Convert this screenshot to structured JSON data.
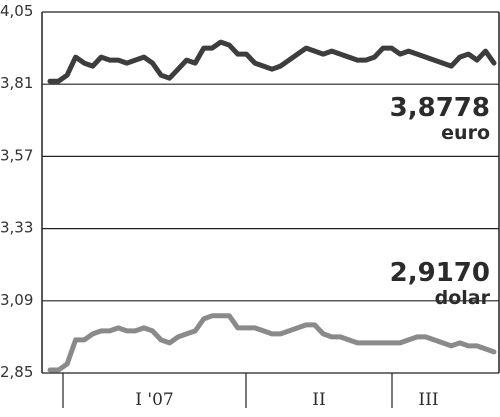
{
  "chart_data": {
    "type": "line",
    "title": "",
    "xlabel": "",
    "ylabel": "",
    "ylim": [
      2.85,
      4.05
    ],
    "y_ticks": [
      "4,05",
      "3,81",
      "3,57",
      "3,33",
      "3,09",
      "2,85"
    ],
    "x_ticks": [
      "I '07",
      "II",
      "III"
    ],
    "grid": true,
    "colors": {
      "euro": "#3d3d3d",
      "dolar": "#8a8a8a",
      "frame": "#222222",
      "grid": "#222222"
    },
    "series": [
      {
        "name": "euro",
        "latest_label": "3,8778",
        "values": [
          3.82,
          3.82,
          3.84,
          3.9,
          3.88,
          3.87,
          3.9,
          3.89,
          3.89,
          3.88,
          3.89,
          3.9,
          3.88,
          3.84,
          3.83,
          3.86,
          3.89,
          3.88,
          3.93,
          3.93,
          3.95,
          3.94,
          3.91,
          3.91,
          3.88,
          3.87,
          3.86,
          3.87,
          3.89,
          3.91,
          3.93,
          3.92,
          3.91,
          3.92,
          3.91,
          3.9,
          3.89,
          3.89,
          3.9,
          3.93,
          3.93,
          3.91,
          3.92,
          3.91,
          3.9,
          3.89,
          3.88,
          3.87,
          3.9,
          3.91,
          3.89,
          3.92,
          3.88
        ]
      },
      {
        "name": "dolar",
        "latest_label": "2,9170",
        "values": [
          2.86,
          2.86,
          2.88,
          2.96,
          2.96,
          2.98,
          2.99,
          2.99,
          3.0,
          2.99,
          2.99,
          3.0,
          2.99,
          2.96,
          2.95,
          2.97,
          2.98,
          2.99,
          3.03,
          3.04,
          3.04,
          3.04,
          3.0,
          3.0,
          3.0,
          2.99,
          2.98,
          2.98,
          2.99,
          3.0,
          3.01,
          3.01,
          2.98,
          2.97,
          2.97,
          2.96,
          2.95,
          2.95,
          2.95,
          2.95,
          2.95,
          2.95,
          2.96,
          2.97,
          2.97,
          2.96,
          2.95,
          2.94,
          2.95,
          2.94,
          2.94,
          2.93,
          2.92
        ]
      }
    ]
  }
}
